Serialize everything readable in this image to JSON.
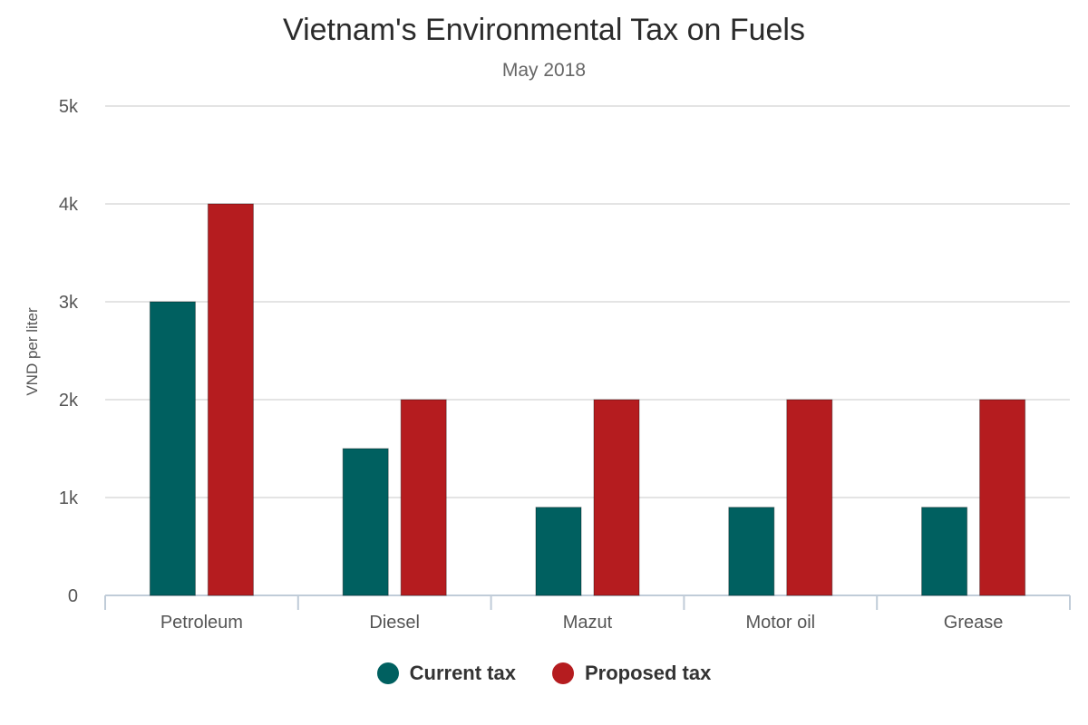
{
  "chart_data": {
    "type": "bar",
    "title": "Vietnam's Environmental Tax on Fuels",
    "subtitle": "May 2018",
    "xlabel": "",
    "ylabel": "VND per liter",
    "ylim": [
      0,
      5000
    ],
    "yticks": [
      0,
      1000,
      2000,
      3000,
      4000,
      5000
    ],
    "ytick_labels": [
      "0",
      "1k",
      "2k",
      "3k",
      "4k",
      "5k"
    ],
    "categories": [
      "Petroleum",
      "Diesel",
      "Mazut",
      "Motor oil",
      "Grease"
    ],
    "series": [
      {
        "name": "Current tax",
        "color": "#006060",
        "values": [
          3000,
          1500,
          900,
          900,
          900
        ]
      },
      {
        "name": "Proposed tax",
        "color": "#b51c1f",
        "values": [
          4000,
          2000,
          2000,
          2000,
          2000
        ]
      }
    ],
    "grid": true,
    "legend_position": "bottom"
  }
}
